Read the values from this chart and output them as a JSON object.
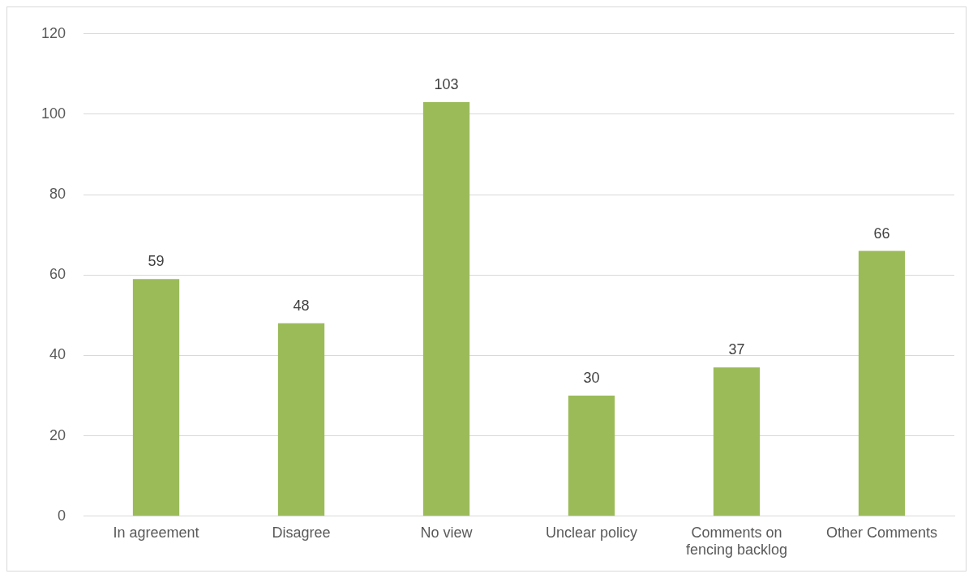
{
  "chart_data": {
    "type": "bar",
    "categories": [
      "In agreement",
      "Disagree",
      "No view",
      "Unclear policy",
      "Comments on fencing backlog",
      "Other Comments"
    ],
    "values": [
      59,
      48,
      103,
      30,
      37,
      66
    ],
    "color": "#9bbb59",
    "ylim": [
      0,
      120
    ],
    "yticks": [
      0,
      20,
      40,
      60,
      80,
      100,
      120
    ],
    "grid": "y",
    "data_labels": true,
    "legend": false
  }
}
